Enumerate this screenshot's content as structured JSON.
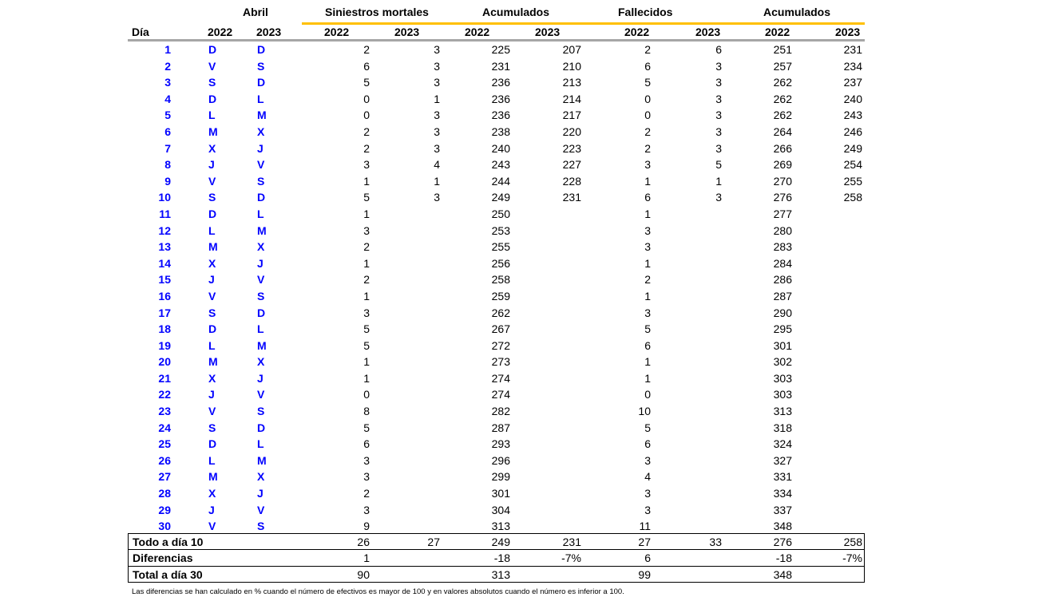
{
  "header": {
    "month": "Abril",
    "siniestros": "Siniestros mortales",
    "acum1": "Acumulados",
    "fallecidos": "Fallecidos",
    "acum2": "Acumulados",
    "dia": "Día",
    "y2022": "2022",
    "y2023": "2023"
  },
  "rows": [
    {
      "dia": "1",
      "d22": "D",
      "d23": "D",
      "s22": "2",
      "s23": "3",
      "a22": "225",
      "a23": "207",
      "f22": "2",
      "f23": "6",
      "fa22": "251",
      "fa23": "231"
    },
    {
      "dia": "2",
      "d22": "V",
      "d23": "S",
      "s22": "6",
      "s23": "3",
      "a22": "231",
      "a23": "210",
      "f22": "6",
      "f23": "3",
      "fa22": "257",
      "fa23": "234"
    },
    {
      "dia": "3",
      "d22": "S",
      "d23": "D",
      "s22": "5",
      "s23": "3",
      "a22": "236",
      "a23": "213",
      "f22": "5",
      "f23": "3",
      "fa22": "262",
      "fa23": "237"
    },
    {
      "dia": "4",
      "d22": "D",
      "d23": "L",
      "s22": "0",
      "s23": "1",
      "a22": "236",
      "a23": "214",
      "f22": "0",
      "f23": "3",
      "fa22": "262",
      "fa23": "240"
    },
    {
      "dia": "5",
      "d22": "L",
      "d23": "M",
      "s22": "0",
      "s23": "3",
      "a22": "236",
      "a23": "217",
      "f22": "0",
      "f23": "3",
      "fa22": "262",
      "fa23": "243"
    },
    {
      "dia": "6",
      "d22": "M",
      "d23": "X",
      "s22": "2",
      "s23": "3",
      "a22": "238",
      "a23": "220",
      "f22": "2",
      "f23": "3",
      "fa22": "264",
      "fa23": "246"
    },
    {
      "dia": "7",
      "d22": "X",
      "d23": "J",
      "s22": "2",
      "s23": "3",
      "a22": "240",
      "a23": "223",
      "f22": "2",
      "f23": "3",
      "fa22": "266",
      "fa23": "249"
    },
    {
      "dia": "8",
      "d22": "J",
      "d23": "V",
      "s22": "3",
      "s23": "4",
      "a22": "243",
      "a23": "227",
      "f22": "3",
      "f23": "5",
      "fa22": "269",
      "fa23": "254"
    },
    {
      "dia": "9",
      "d22": "V",
      "d23": "S",
      "s22": "1",
      "s23": "1",
      "a22": "244",
      "a23": "228",
      "f22": "1",
      "f23": "1",
      "fa22": "270",
      "fa23": "255"
    },
    {
      "dia": "10",
      "d22": "S",
      "d23": "D",
      "s22": "5",
      "s23": "3",
      "a22": "249",
      "a23": "231",
      "f22": "6",
      "f23": "3",
      "fa22": "276",
      "fa23": "258"
    },
    {
      "dia": "11",
      "d22": "D",
      "d23": "L",
      "s22": "1",
      "s23": "",
      "a22": "250",
      "a23": "",
      "f22": "1",
      "f23": "",
      "fa22": "277",
      "fa23": ""
    },
    {
      "dia": "12",
      "d22": "L",
      "d23": "M",
      "s22": "3",
      "s23": "",
      "a22": "253",
      "a23": "",
      "f22": "3",
      "f23": "",
      "fa22": "280",
      "fa23": ""
    },
    {
      "dia": "13",
      "d22": "M",
      "d23": "X",
      "s22": "2",
      "s23": "",
      "a22": "255",
      "a23": "",
      "f22": "3",
      "f23": "",
      "fa22": "283",
      "fa23": ""
    },
    {
      "dia": "14",
      "d22": "X",
      "d23": "J",
      "s22": "1",
      "s23": "",
      "a22": "256",
      "a23": "",
      "f22": "1",
      "f23": "",
      "fa22": "284",
      "fa23": ""
    },
    {
      "dia": "15",
      "d22": "J",
      "d23": "V",
      "s22": "2",
      "s23": "",
      "a22": "258",
      "a23": "",
      "f22": "2",
      "f23": "",
      "fa22": "286",
      "fa23": ""
    },
    {
      "dia": "16",
      "d22": "V",
      "d23": "S",
      "s22": "1",
      "s23": "",
      "a22": "259",
      "a23": "",
      "f22": "1",
      "f23": "",
      "fa22": "287",
      "fa23": ""
    },
    {
      "dia": "17",
      "d22": "S",
      "d23": "D",
      "s22": "3",
      "s23": "",
      "a22": "262",
      "a23": "",
      "f22": "3",
      "f23": "",
      "fa22": "290",
      "fa23": ""
    },
    {
      "dia": "18",
      "d22": "D",
      "d23": "L",
      "s22": "5",
      "s23": "",
      "a22": "267",
      "a23": "",
      "f22": "5",
      "f23": "",
      "fa22": "295",
      "fa23": ""
    },
    {
      "dia": "19",
      "d22": "L",
      "d23": "M",
      "s22": "5",
      "s23": "",
      "a22": "272",
      "a23": "",
      "f22": "6",
      "f23": "",
      "fa22": "301",
      "fa23": ""
    },
    {
      "dia": "20",
      "d22": "M",
      "d23": "X",
      "s22": "1",
      "s23": "",
      "a22": "273",
      "a23": "",
      "f22": "1",
      "f23": "",
      "fa22": "302",
      "fa23": ""
    },
    {
      "dia": "21",
      "d22": "X",
      "d23": "J",
      "s22": "1",
      "s23": "",
      "a22": "274",
      "a23": "",
      "f22": "1",
      "f23": "",
      "fa22": "303",
      "fa23": ""
    },
    {
      "dia": "22",
      "d22": "J",
      "d23": "V",
      "s22": "0",
      "s23": "",
      "a22": "274",
      "a23": "",
      "f22": "0",
      "f23": "",
      "fa22": "303",
      "fa23": ""
    },
    {
      "dia": "23",
      "d22": "V",
      "d23": "S",
      "s22": "8",
      "s23": "",
      "a22": "282",
      "a23": "",
      "f22": "10",
      "f23": "",
      "fa22": "313",
      "fa23": ""
    },
    {
      "dia": "24",
      "d22": "S",
      "d23": "D",
      "s22": "5",
      "s23": "",
      "a22": "287",
      "a23": "",
      "f22": "5",
      "f23": "",
      "fa22": "318",
      "fa23": ""
    },
    {
      "dia": "25",
      "d22": "D",
      "d23": "L",
      "s22": "6",
      "s23": "",
      "a22": "293",
      "a23": "",
      "f22": "6",
      "f23": "",
      "fa22": "324",
      "fa23": ""
    },
    {
      "dia": "26",
      "d22": "L",
      "d23": "M",
      "s22": "3",
      "s23": "",
      "a22": "296",
      "a23": "",
      "f22": "3",
      "f23": "",
      "fa22": "327",
      "fa23": ""
    },
    {
      "dia": "27",
      "d22": "M",
      "d23": "X",
      "s22": "3",
      "s23": "",
      "a22": "299",
      "a23": "",
      "f22": "4",
      "f23": "",
      "fa22": "331",
      "fa23": ""
    },
    {
      "dia": "28",
      "d22": "X",
      "d23": "J",
      "s22": "2",
      "s23": "",
      "a22": "301",
      "a23": "",
      "f22": "3",
      "f23": "",
      "fa22": "334",
      "fa23": ""
    },
    {
      "dia": "29",
      "d22": "J",
      "d23": "V",
      "s22": "3",
      "s23": "",
      "a22": "304",
      "a23": "",
      "f22": "3",
      "f23": "",
      "fa22": "337",
      "fa23": ""
    },
    {
      "dia": "30",
      "d22": "V",
      "d23": "S",
      "s22": "9",
      "s23": "",
      "a22": "313",
      "a23": "",
      "f22": "11",
      "f23": "",
      "fa22": "348",
      "fa23": ""
    }
  ],
  "summary": [
    {
      "label": "Todo a día 10",
      "s22": "26",
      "s23": "27",
      "a22": "249",
      "a23": "231",
      "f22": "27",
      "f23": "33",
      "fa22": "276",
      "fa23": "258"
    },
    {
      "label": "Diferencias",
      "s22": "1",
      "s23": "",
      "a22": "-18",
      "a23": "-7%",
      "f22": "6",
      "f23": "",
      "fa22": "-18",
      "fa23": "-7%"
    },
    {
      "label": "Total a día 30",
      "s22": "90",
      "s23": "",
      "a22": "313",
      "a23": "",
      "f22": "99",
      "f23": "",
      "fa22": "348",
      "fa23": ""
    }
  ],
  "note": "Las diferencias se han calculado en % cuando el número de efectivos es mayor de 100 y en valores absolutos cuando el número es inferior a 100.",
  "colors": {
    "accent_line": "#ffc000",
    "weekday_text": "#0000ff",
    "rule": "#a6a6a6"
  }
}
